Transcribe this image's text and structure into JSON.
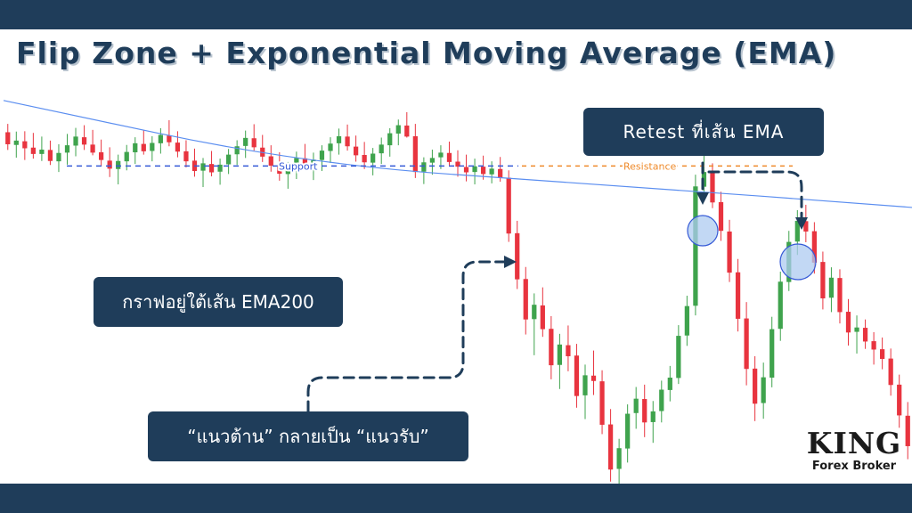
{
  "header": {
    "title": "Flip Zone + Exponential Moving Average (EMA)"
  },
  "callouts": {
    "retest": "Retest ที่เส้น EMA",
    "below_ema": "กราฟอยู่ใต้เส้น EMA200",
    "flip": "“แนวต้าน” กลายเป็น “แนวรับ”"
  },
  "brand": {
    "logo_text": "KING",
    "sub_text": "Forex Broker"
  },
  "colors": {
    "navy": "#1f3d5a",
    "bull": "#3fa34d",
    "bear": "#e8343f",
    "ema": "#5b8ef0",
    "support": "#3559d6",
    "resistance": "#ef8a2a",
    "marker_fill": "#aecbf0"
  },
  "chart_data": {
    "type": "candlestick",
    "series_count": 1,
    "candles": [
      {
        "o": 205.1,
        "h": 207.6,
        "l": 199.8,
        "c": 201.5
      },
      {
        "o": 201.3,
        "h": 205.3,
        "l": 197.5,
        "c": 202.6
      },
      {
        "o": 202.4,
        "h": 205.4,
        "l": 196.8,
        "c": 200.3
      },
      {
        "o": 200.5,
        "h": 204.9,
        "l": 197.2,
        "c": 198.6
      },
      {
        "o": 198.6,
        "h": 203.8,
        "l": 196.5,
        "c": 199.9
      },
      {
        "o": 199.8,
        "h": 202.6,
        "l": 195.3,
        "c": 196.5
      },
      {
        "o": 196.4,
        "h": 201.5,
        "l": 193.2,
        "c": 198.9
      },
      {
        "o": 199.0,
        "h": 204.6,
        "l": 195.4,
        "c": 201.2
      },
      {
        "o": 201.1,
        "h": 206.4,
        "l": 197.9,
        "c": 203.8
      },
      {
        "o": 203.6,
        "h": 207.2,
        "l": 199.8,
        "c": 201.4
      },
      {
        "o": 201.4,
        "h": 205.8,
        "l": 198.2,
        "c": 199.0
      },
      {
        "o": 199.1,
        "h": 202.9,
        "l": 194.9,
        "c": 196.8
      },
      {
        "o": 196.6,
        "h": 200.6,
        "l": 191.7,
        "c": 194.2
      },
      {
        "o": 194.1,
        "h": 198.4,
        "l": 189.5,
        "c": 196.5
      },
      {
        "o": 196.4,
        "h": 201.3,
        "l": 193.7,
        "c": 199.2
      },
      {
        "o": 199.1,
        "h": 203.6,
        "l": 195.6,
        "c": 201.8
      },
      {
        "o": 201.6,
        "h": 205.7,
        "l": 198.4,
        "c": 199.4
      },
      {
        "o": 199.5,
        "h": 203.9,
        "l": 196.4,
        "c": 201.9
      },
      {
        "o": 201.8,
        "h": 206.3,
        "l": 198.7,
        "c": 204.3
      },
      {
        "o": 204.1,
        "h": 208.7,
        "l": 200.9,
        "c": 202.1
      },
      {
        "o": 202.0,
        "h": 205.4,
        "l": 197.6,
        "c": 199.3
      },
      {
        "o": 199.4,
        "h": 202.7,
        "l": 194.6,
        "c": 196.4
      },
      {
        "o": 196.6,
        "h": 200.2,
        "l": 191.8,
        "c": 193.5
      },
      {
        "o": 193.6,
        "h": 197.4,
        "l": 188.7,
        "c": 195.8
      },
      {
        "o": 195.6,
        "h": 199.5,
        "l": 191.9,
        "c": 193.1
      },
      {
        "o": 193.3,
        "h": 197.2,
        "l": 189.4,
        "c": 195.4
      },
      {
        "o": 195.5,
        "h": 200.1,
        "l": 192.6,
        "c": 198.4
      },
      {
        "o": 198.5,
        "h": 202.7,
        "l": 195.3,
        "c": 200.9
      },
      {
        "o": 201.0,
        "h": 205.6,
        "l": 197.4,
        "c": 203.4
      },
      {
        "o": 203.3,
        "h": 207.5,
        "l": 199.6,
        "c": 200.6
      },
      {
        "o": 200.5,
        "h": 204.3,
        "l": 196.2,
        "c": 197.8
      },
      {
        "o": 197.9,
        "h": 201.2,
        "l": 193.3,
        "c": 195.1
      },
      {
        "o": 195.2,
        "h": 199.1,
        "l": 190.6,
        "c": 192.7
      },
      {
        "o": 192.6,
        "h": 196.2,
        "l": 188.2,
        "c": 194.8
      },
      {
        "o": 194.9,
        "h": 199.3,
        "l": 191.1,
        "c": 197.4
      },
      {
        "o": 197.3,
        "h": 201.6,
        "l": 193.9,
        "c": 195.1
      },
      {
        "o": 195.2,
        "h": 199.0,
        "l": 190.8,
        "c": 196.9
      },
      {
        "o": 196.8,
        "h": 201.2,
        "l": 193.5,
        "c": 199.6
      },
      {
        "o": 199.5,
        "h": 203.6,
        "l": 195.9,
        "c": 201.7
      },
      {
        "o": 201.8,
        "h": 206.2,
        "l": 198.4,
        "c": 203.9
      },
      {
        "o": 203.8,
        "h": 207.4,
        "l": 199.6,
        "c": 200.9
      },
      {
        "o": 200.8,
        "h": 204.1,
        "l": 196.3,
        "c": 198.2
      },
      {
        "o": 198.3,
        "h": 202.2,
        "l": 194.1,
        "c": 196.1
      },
      {
        "o": 196.0,
        "h": 200.4,
        "l": 192.2,
        "c": 198.7
      },
      {
        "o": 198.8,
        "h": 203.5,
        "l": 195.6,
        "c": 201.4
      },
      {
        "o": 201.2,
        "h": 206.3,
        "l": 197.8,
        "c": 204.8
      },
      {
        "o": 204.7,
        "h": 208.9,
        "l": 201.2,
        "c": 207.2
      },
      {
        "o": 207.1,
        "h": 211.1,
        "l": 203.5,
        "c": 203.8
      },
      {
        "o": 203.9,
        "h": 207.6,
        "l": 191.4,
        "c": 193.2
      },
      {
        "o": 193.3,
        "h": 197.6,
        "l": 189.6,
        "c": 196.1
      },
      {
        "o": 196.0,
        "h": 199.9,
        "l": 192.4,
        "c": 197.4
      },
      {
        "o": 197.6,
        "h": 201.2,
        "l": 194.1,
        "c": 199.0
      },
      {
        "o": 198.9,
        "h": 202.3,
        "l": 195.2,
        "c": 196.2
      },
      {
        "o": 196.3,
        "h": 199.7,
        "l": 191.8,
        "c": 194.8
      },
      {
        "o": 194.7,
        "h": 198.4,
        "l": 190.4,
        "c": 193.1
      },
      {
        "o": 193.2,
        "h": 197.2,
        "l": 189.5,
        "c": 194.9
      },
      {
        "o": 194.8,
        "h": 198.1,
        "l": 190.9,
        "c": 192.6
      },
      {
        "o": 192.5,
        "h": 196.4,
        "l": 189.8,
        "c": 194.2
      },
      {
        "o": 194.1,
        "h": 197.7,
        "l": 190.3,
        "c": 191.4
      },
      {
        "o": 191.5,
        "h": 193.7,
        "l": 172.3,
        "c": 174.8
      },
      {
        "o": 174.9,
        "h": 178.6,
        "l": 158.2,
        "c": 161.1
      },
      {
        "o": 161.2,
        "h": 164.8,
        "l": 144.6,
        "c": 149.1
      },
      {
        "o": 149.2,
        "h": 156.9,
        "l": 138.4,
        "c": 153.5
      },
      {
        "o": 153.3,
        "h": 158.7,
        "l": 143.9,
        "c": 146.2
      },
      {
        "o": 146.3,
        "h": 150.1,
        "l": 131.2,
        "c": 135.4
      },
      {
        "o": 135.5,
        "h": 144.8,
        "l": 128.3,
        "c": 141.6
      },
      {
        "o": 141.4,
        "h": 147.3,
        "l": 133.6,
        "c": 138.1
      },
      {
        "o": 138.3,
        "h": 141.8,
        "l": 122.7,
        "c": 126.2
      },
      {
        "o": 126.4,
        "h": 135.6,
        "l": 119.3,
        "c": 132.4
      },
      {
        "o": 132.3,
        "h": 139.8,
        "l": 126.5,
        "c": 130.7
      },
      {
        "o": 130.6,
        "h": 133.9,
        "l": 114.8,
        "c": 117.6
      },
      {
        "o": 117.7,
        "h": 122.3,
        "l": 100.6,
        "c": 104.2
      },
      {
        "o": 104.4,
        "h": 113.4,
        "l": 98.2,
        "c": 110.6
      },
      {
        "o": 110.5,
        "h": 123.7,
        "l": 106.3,
        "c": 120.9
      },
      {
        "o": 121.1,
        "h": 128.9,
        "l": 116.4,
        "c": 125.4
      },
      {
        "o": 125.3,
        "h": 129.6,
        "l": 113.9,
        "c": 118.3
      },
      {
        "o": 118.4,
        "h": 124.7,
        "l": 112.2,
        "c": 121.6
      },
      {
        "o": 121.7,
        "h": 130.8,
        "l": 118.3,
        "c": 128.1
      },
      {
        "o": 128.0,
        "h": 135.2,
        "l": 124.6,
        "c": 131.7
      },
      {
        "o": 131.6,
        "h": 147.4,
        "l": 129.8,
        "c": 144.2
      },
      {
        "o": 144.3,
        "h": 156.2,
        "l": 141.2,
        "c": 153.1
      },
      {
        "o": 153.2,
        "h": 192.4,
        "l": 150.3,
        "c": 188.9
      },
      {
        "o": 188.8,
        "h": 198.2,
        "l": 185.6,
        "c": 193.2
      },
      {
        "o": 193.1,
        "h": 195.8,
        "l": 182.4,
        "c": 184.1
      },
      {
        "o": 184.2,
        "h": 187.3,
        "l": 172.6,
        "c": 175.6
      },
      {
        "o": 175.4,
        "h": 178.9,
        "l": 160.3,
        "c": 163.1
      },
      {
        "o": 163.2,
        "h": 167.2,
        "l": 145.5,
        "c": 149.3
      },
      {
        "o": 149.4,
        "h": 154.3,
        "l": 129.4,
        "c": 134.3
      },
      {
        "o": 134.4,
        "h": 138.1,
        "l": 118.7,
        "c": 123.9
      },
      {
        "o": 124.1,
        "h": 136.2,
        "l": 119.4,
        "c": 131.8
      },
      {
        "o": 131.7,
        "h": 149.9,
        "l": 128.8,
        "c": 146.2
      },
      {
        "o": 146.3,
        "h": 163.4,
        "l": 142.7,
        "c": 160.4
      },
      {
        "o": 160.3,
        "h": 175.6,
        "l": 157.6,
        "c": 172.3
      },
      {
        "o": 172.4,
        "h": 181.8,
        "l": 168.4,
        "c": 178.6
      },
      {
        "o": 178.5,
        "h": 183.4,
        "l": 172.2,
        "c": 175.4
      },
      {
        "o": 175.5,
        "h": 178.2,
        "l": 162.8,
        "c": 166.1
      },
      {
        "o": 166.3,
        "h": 169.4,
        "l": 152.1,
        "c": 155.4
      },
      {
        "o": 155.6,
        "h": 164.7,
        "l": 151.3,
        "c": 161.6
      },
      {
        "o": 161.5,
        "h": 164.1,
        "l": 147.9,
        "c": 151.3
      },
      {
        "o": 151.4,
        "h": 155.2,
        "l": 141.3,
        "c": 145.2
      },
      {
        "o": 145.4,
        "h": 150.3,
        "l": 138.9,
        "c": 146.7
      },
      {
        "o": 146.6,
        "h": 149.1,
        "l": 140.3,
        "c": 142.5
      },
      {
        "o": 142.6,
        "h": 145.3,
        "l": 135.6,
        "c": 140.1
      },
      {
        "o": 140.2,
        "h": 143.7,
        "l": 134.2,
        "c": 137.3
      },
      {
        "o": 137.4,
        "h": 140.4,
        "l": 126.3,
        "c": 129.5
      },
      {
        "o": 129.6,
        "h": 132.6,
        "l": 116.7,
        "c": 120.4
      },
      {
        "o": 120.3,
        "h": 124.4,
        "l": 107.3,
        "c": 111.2
      }
    ],
    "ema200": [
      214.6,
      195.4,
      189.4,
      182.6
    ],
    "support_level": 195.0,
    "resistance_level": 195.0,
    "support_label": "Support",
    "resistance_label": "Resistance",
    "ylim": [
      100,
      230
    ],
    "grid": false
  }
}
